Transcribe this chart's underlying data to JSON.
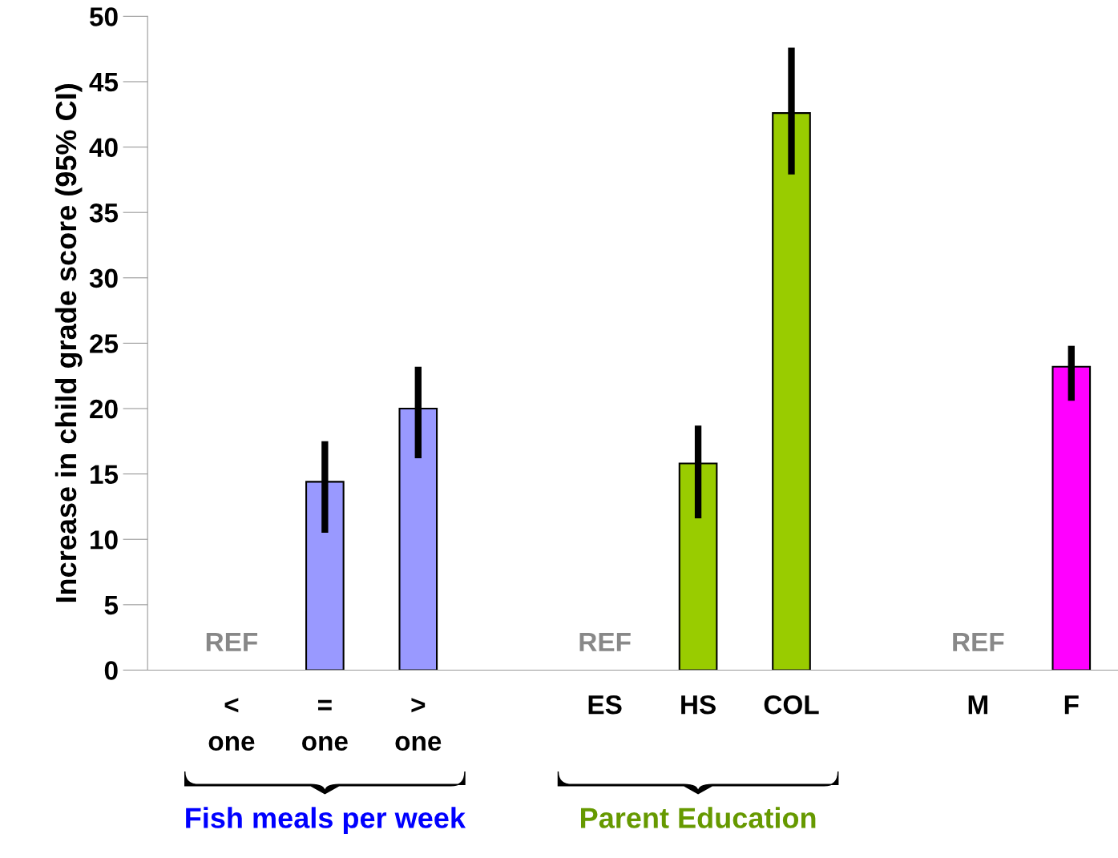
{
  "chart_data": {
    "type": "bar",
    "ylabel": "Increase in child grade score (95% CI)",
    "categories": [
      "<\none",
      "=\none",
      ">\none",
      null,
      "ES",
      "HS",
      "COL",
      null,
      "M",
      "F"
    ],
    "values": [
      null,
      14.4,
      20.0,
      null,
      null,
      15.8,
      42.6,
      null,
      null,
      23.2
    ],
    "errors": [
      null,
      [
        10.5,
        17.5
      ],
      [
        16.2,
        23.2
      ],
      null,
      null,
      [
        11.6,
        18.7
      ],
      [
        37.9,
        47.6
      ],
      null,
      null,
      [
        20.6,
        24.8
      ]
    ],
    "colors": [
      null,
      "#9999ff",
      "#9999ff",
      null,
      null,
      "#99cc00",
      "#99cc00",
      null,
      null,
      "#ff00ff"
    ],
    "ylim": [
      0,
      50
    ],
    "yticks": [
      0,
      5,
      10,
      15,
      20,
      25,
      30,
      35,
      40,
      45,
      50
    ],
    "grid": false,
    "legend": false,
    "value_labels": [
      "REF",
      null,
      null,
      null,
      "REF",
      null,
      null,
      null,
      "REF",
      null
    ],
    "annotations": [
      "Fish meals per week",
      "Parent Education"
    ]
  }
}
